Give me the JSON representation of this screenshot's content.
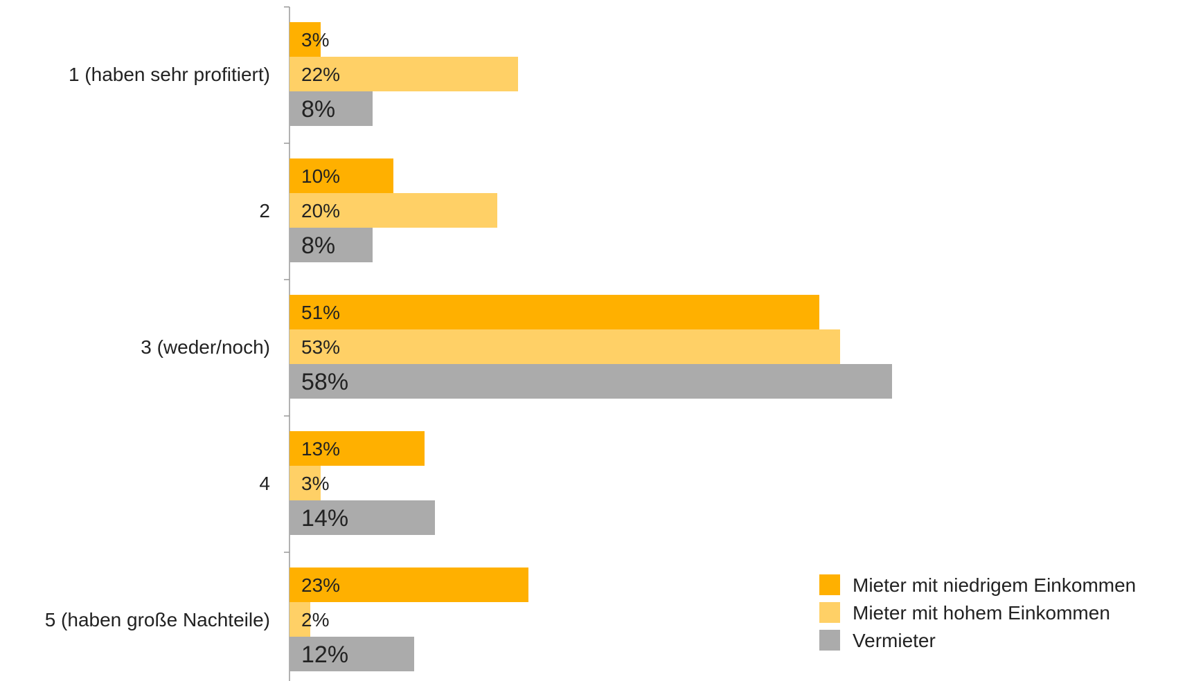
{
  "chart_data": {
    "type": "bar",
    "orientation": "horizontal",
    "categories": [
      "1 (haben sehr profitiert)",
      "2",
      "3 (weder/noch)",
      "4",
      "5 (haben große Nachteile)"
    ],
    "series": [
      {
        "name": "Mieter mit niedrigem Einkommen",
        "color": "#FFB000",
        "values": [
          3,
          10,
          51,
          13,
          23
        ],
        "labels": [
          "3%",
          "10%",
          "51%",
          "13%",
          "23%"
        ]
      },
      {
        "name": "Mieter mit hohem Einkommen",
        "color": "#FFD066",
        "values": [
          22,
          20,
          53,
          3,
          2
        ],
        "labels": [
          "22%",
          "20%",
          "53%",
          "3%",
          "2%"
        ]
      },
      {
        "name": "Vermieter",
        "color": "#ABABAB",
        "values": [
          8,
          8,
          58,
          14,
          12
        ],
        "labels": [
          "8%",
          "8%",
          "58%",
          "14%",
          "12%"
        ]
      }
    ],
    "xlim": [
      0,
      100
    ],
    "unit": "%",
    "grid": false,
    "legend_position": "bottom-right"
  }
}
